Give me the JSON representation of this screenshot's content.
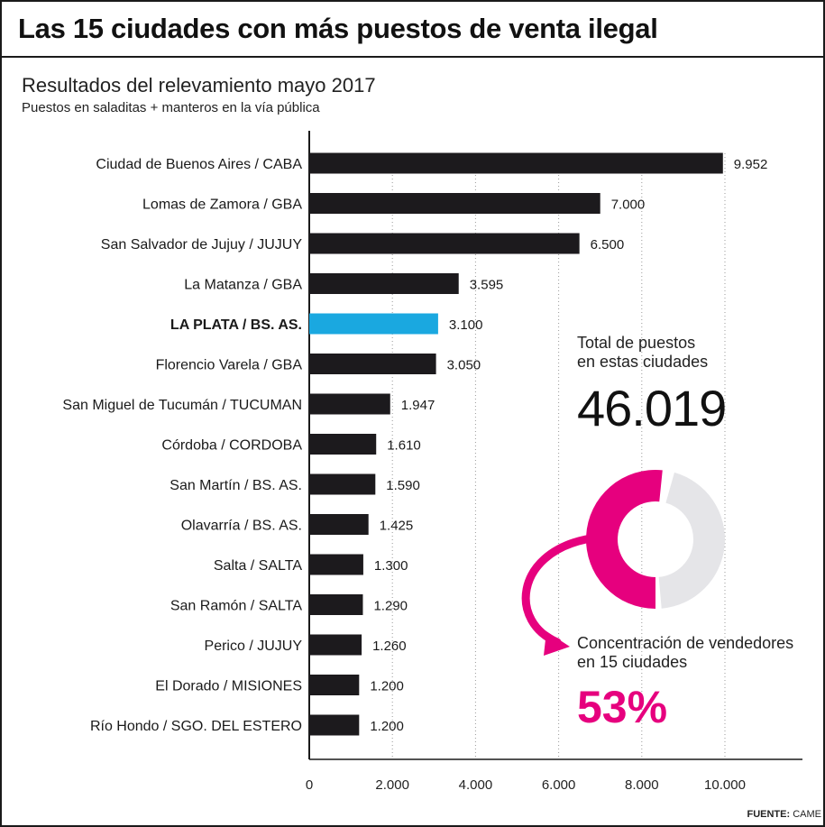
{
  "header": {
    "title": "Las 15 ciudades con más puestos de venta ilegal",
    "subtitle": "Resultados del relevamiento mayo 2017",
    "subtitle2": "Puestos en saladitas + manteros en la vía pública"
  },
  "chart_data": {
    "type": "bar",
    "orientation": "horizontal",
    "categories": [
      "Ciudad de Buenos Aires / CABA",
      "Lomas de Zamora / GBA",
      "San Salvador de Jujuy / JUJUY",
      "La Matanza / GBA",
      "LA PLATA / BS. AS.",
      "Florencio Varela / GBA",
      "San Miguel de Tucumán / TUCUMAN",
      "Córdoba / CORDOBA",
      "San Martín / BS. AS.",
      "Olavarría / BS. AS.",
      "Salta / SALTA",
      "San Ramón / SALTA",
      "Perico / JUJUY",
      "El Dorado / MISIONES",
      "Río Hondo / SGO. DEL ESTERO"
    ],
    "values": [
      9952,
      7000,
      6500,
      3595,
      3100,
      3050,
      1947,
      1610,
      1590,
      1425,
      1300,
      1290,
      1260,
      1200,
      1200
    ],
    "value_labels": [
      "9.952",
      "7.000",
      "6.500",
      "3.595",
      "3.100",
      "3.050",
      "1.947",
      "1.610",
      "1.590",
      "1.425",
      "1.300",
      "1.290",
      "1.260",
      "1.200",
      "1.200"
    ],
    "highlight_index": 4,
    "bar_color": "#1c1a1d",
    "highlight_color": "#1aa8e0",
    "xlim": [
      0,
      12000
    ],
    "xticks": [
      0,
      2000,
      4000,
      6000,
      8000,
      10000
    ],
    "xtick_labels": [
      "0",
      "2.000",
      "4.000",
      "6.000",
      "8.000",
      "10.000"
    ],
    "grid": true
  },
  "summary": {
    "total_label_line1": "Total de puestos",
    "total_label_line2": "en estas ciudades",
    "total_value": "46.019",
    "concentration_label_line1": "Concentración de vendedores",
    "concentration_label_line2": "en 15 ciudades",
    "concentration_value": "53%",
    "concentration_percent": 53,
    "accent_color": "#e6007e",
    "remainder_color": "#e5e5e8"
  },
  "footer": {
    "source_label": "FUENTE:",
    "source_value": "CAME"
  }
}
